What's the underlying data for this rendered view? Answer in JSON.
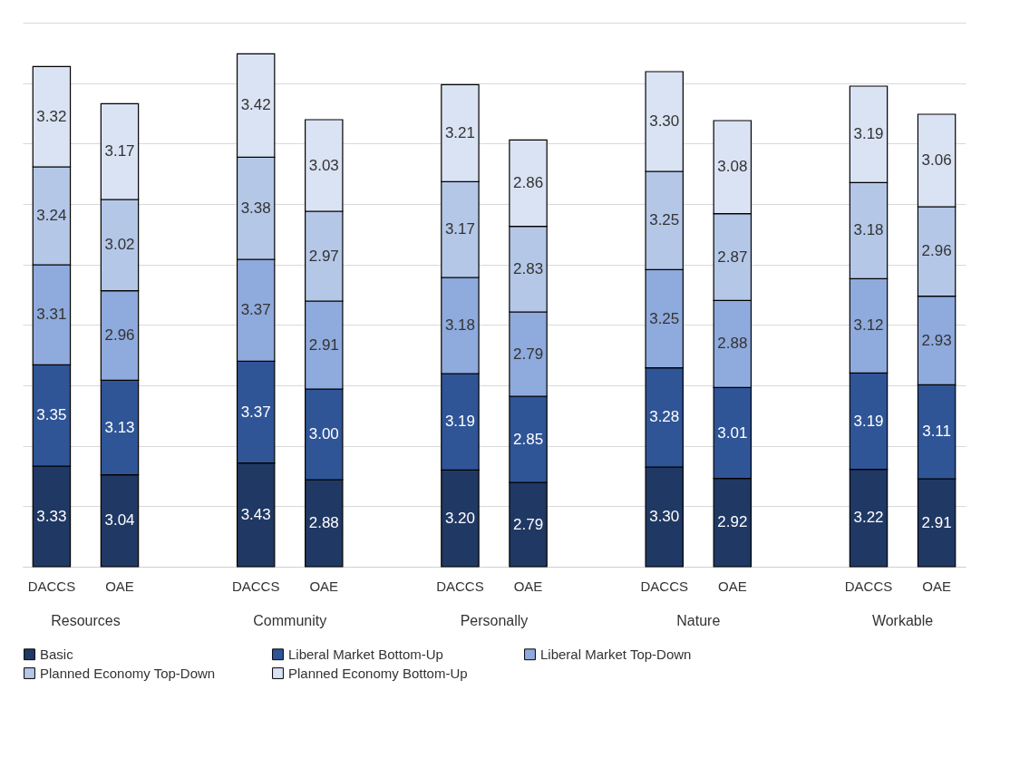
{
  "chart_data": {
    "type": "bar",
    "stacked": true,
    "grid": "y",
    "tick_labels": "x",
    "legend": "bottom",
    "categories": [
      "DACCS",
      "OAE",
      "DACCS",
      "OAE",
      "DACCS",
      "OAE",
      "DACCS",
      "OAE",
      "DACCS",
      "OAE"
    ],
    "ylim": [
      0,
      18
    ],
    "yticks": [
      {
        "value": 0,
        "label": null
      },
      {
        "value": 2,
        "label": null
      },
      {
        "value": 4,
        "label": null
      },
      {
        "value": 6,
        "label": null
      },
      {
        "value": 8,
        "label": null
      },
      {
        "value": 10,
        "label": null
      },
      {
        "value": 12,
        "label": null
      },
      {
        "value": 14,
        "label": null
      },
      {
        "value": 16,
        "label": null
      },
      {
        "value": 18,
        "label": null
      }
    ],
    "annotations": [
      "Resources",
      "Community",
      "Personally",
      "Nature",
      "Workable"
    ],
    "series": [
      {
        "name": "Basic",
        "color": "#203864",
        "values": [
          3.33,
          3.04,
          3.43,
          2.88,
          3.2,
          2.79,
          3.3,
          2.92,
          3.22,
          2.91
        ],
        "value_labels": [
          "3.33",
          "3.04",
          "3.43",
          "2.88",
          "3.20",
          "2.79",
          "3.30",
          "2.92",
          "3.22",
          "2.91"
        ]
      },
      {
        "name": "Liberal Market Bottom-Up",
        "color": "#2f5597",
        "values": [
          3.35,
          3.13,
          3.37,
          3.0,
          3.19,
          2.85,
          3.28,
          3.01,
          3.19,
          3.11
        ],
        "value_labels": [
          "3.35",
          "3.13",
          "3.37",
          "3.00",
          "3.19",
          "2.85",
          "3.28",
          "3.01",
          "3.19",
          "3.11"
        ]
      },
      {
        "name": "Liberal Market Top-Down",
        "color": "#8faadc",
        "values": [
          3.31,
          2.96,
          3.37,
          2.91,
          3.18,
          2.79,
          3.25,
          2.88,
          3.12,
          2.93
        ],
        "value_labels": [
          "3.31",
          "2.96",
          "3.37",
          "2.91",
          "3.18",
          "2.79",
          "3.25",
          "2.88",
          "3.12",
          "2.93"
        ]
      },
      {
        "name": "Planned Economy Top-Down",
        "color": "#b4c7e7",
        "values": [
          3.24,
          3.02,
          3.38,
          2.97,
          3.17,
          2.83,
          3.25,
          2.87,
          3.18,
          2.96
        ],
        "value_labels": [
          "3.24",
          "3.02",
          "3.38",
          "2.97",
          "3.17",
          "2.83",
          "3.25",
          "2.87",
          "3.18",
          "2.96"
        ]
      },
      {
        "name": "Planned Economy Bottom-Up",
        "color": "#dae3f3",
        "values": [
          3.32,
          3.17,
          3.42,
          3.03,
          3.21,
          2.86,
          3.3,
          3.08,
          3.19,
          3.06
        ],
        "value_labels": [
          "3.32",
          "3.17",
          "3.42",
          "3.03",
          "3.21",
          "2.86",
          "3.30",
          "3.08",
          "3.19",
          "3.06"
        ]
      }
    ]
  }
}
